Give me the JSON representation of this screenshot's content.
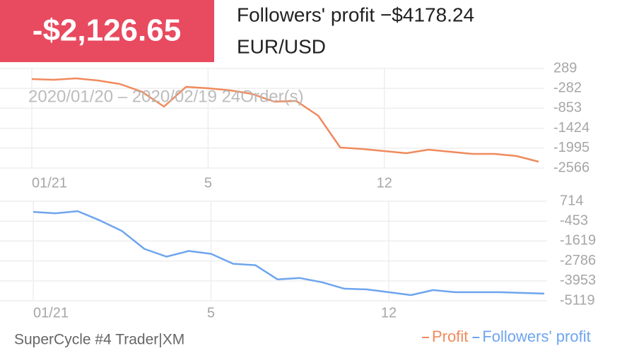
{
  "header": {
    "value": "-$2,126.65",
    "title": "Followers' profit −$4178.24",
    "symbol": "EUR/USD",
    "period": "2020/01/20 – 2020/02/19 24Order(s)"
  },
  "footer": {
    "text": "SuperCycle #4 Trader|XM"
  },
  "chart_data": [
    {
      "type": "line",
      "categories": [
        "01/21",
        null,
        null,
        null,
        null,
        null,
        null,
        null,
        "5",
        null,
        null,
        null,
        null,
        null,
        null,
        null,
        "12",
        null,
        null,
        null,
        null,
        null,
        null,
        null
      ],
      "series": [
        {
          "name": "Profit",
          "color": "#f08a5d",
          "values": [
            -15,
            -35,
            5,
            -55,
            -156,
            -379,
            -804,
            -237,
            -278,
            -339,
            -440,
            -663,
            -642,
            -1068,
            -1979,
            -2019,
            -2080,
            -2141,
            -2040,
            -2100,
            -2161,
            -2161,
            -2222,
            -2384
          ]
        }
      ],
      "ylim": [
        -2566,
        289
      ],
      "yticks": [
        289,
        -282,
        -853,
        -1424,
        -1995,
        -2566
      ],
      "grid": true
    },
    {
      "type": "line",
      "categories": [
        "01/21",
        null,
        null,
        null,
        null,
        null,
        null,
        null,
        "5",
        null,
        null,
        null,
        null,
        null,
        null,
        null,
        "12",
        null,
        null,
        null,
        null,
        null,
        null,
        null
      ],
      "series": [
        {
          "name": "Followers' profit",
          "color": "#6ea5ee",
          "values": [
            89,
            6,
            131,
            -411,
            -1036,
            -2078,
            -2536,
            -2203,
            -2370,
            -2953,
            -3036,
            -3870,
            -3786,
            -4036,
            -4411,
            -4453,
            -4620,
            -4786,
            -4495,
            -4620,
            -4620,
            -4620,
            -4661,
            -4703
          ]
        }
      ],
      "ylim": [
        -5119,
        714
      ],
      "yticks": [
        714,
        -453,
        -1619,
        -2786,
        -3953,
        -5119
      ],
      "grid": true
    }
  ]
}
